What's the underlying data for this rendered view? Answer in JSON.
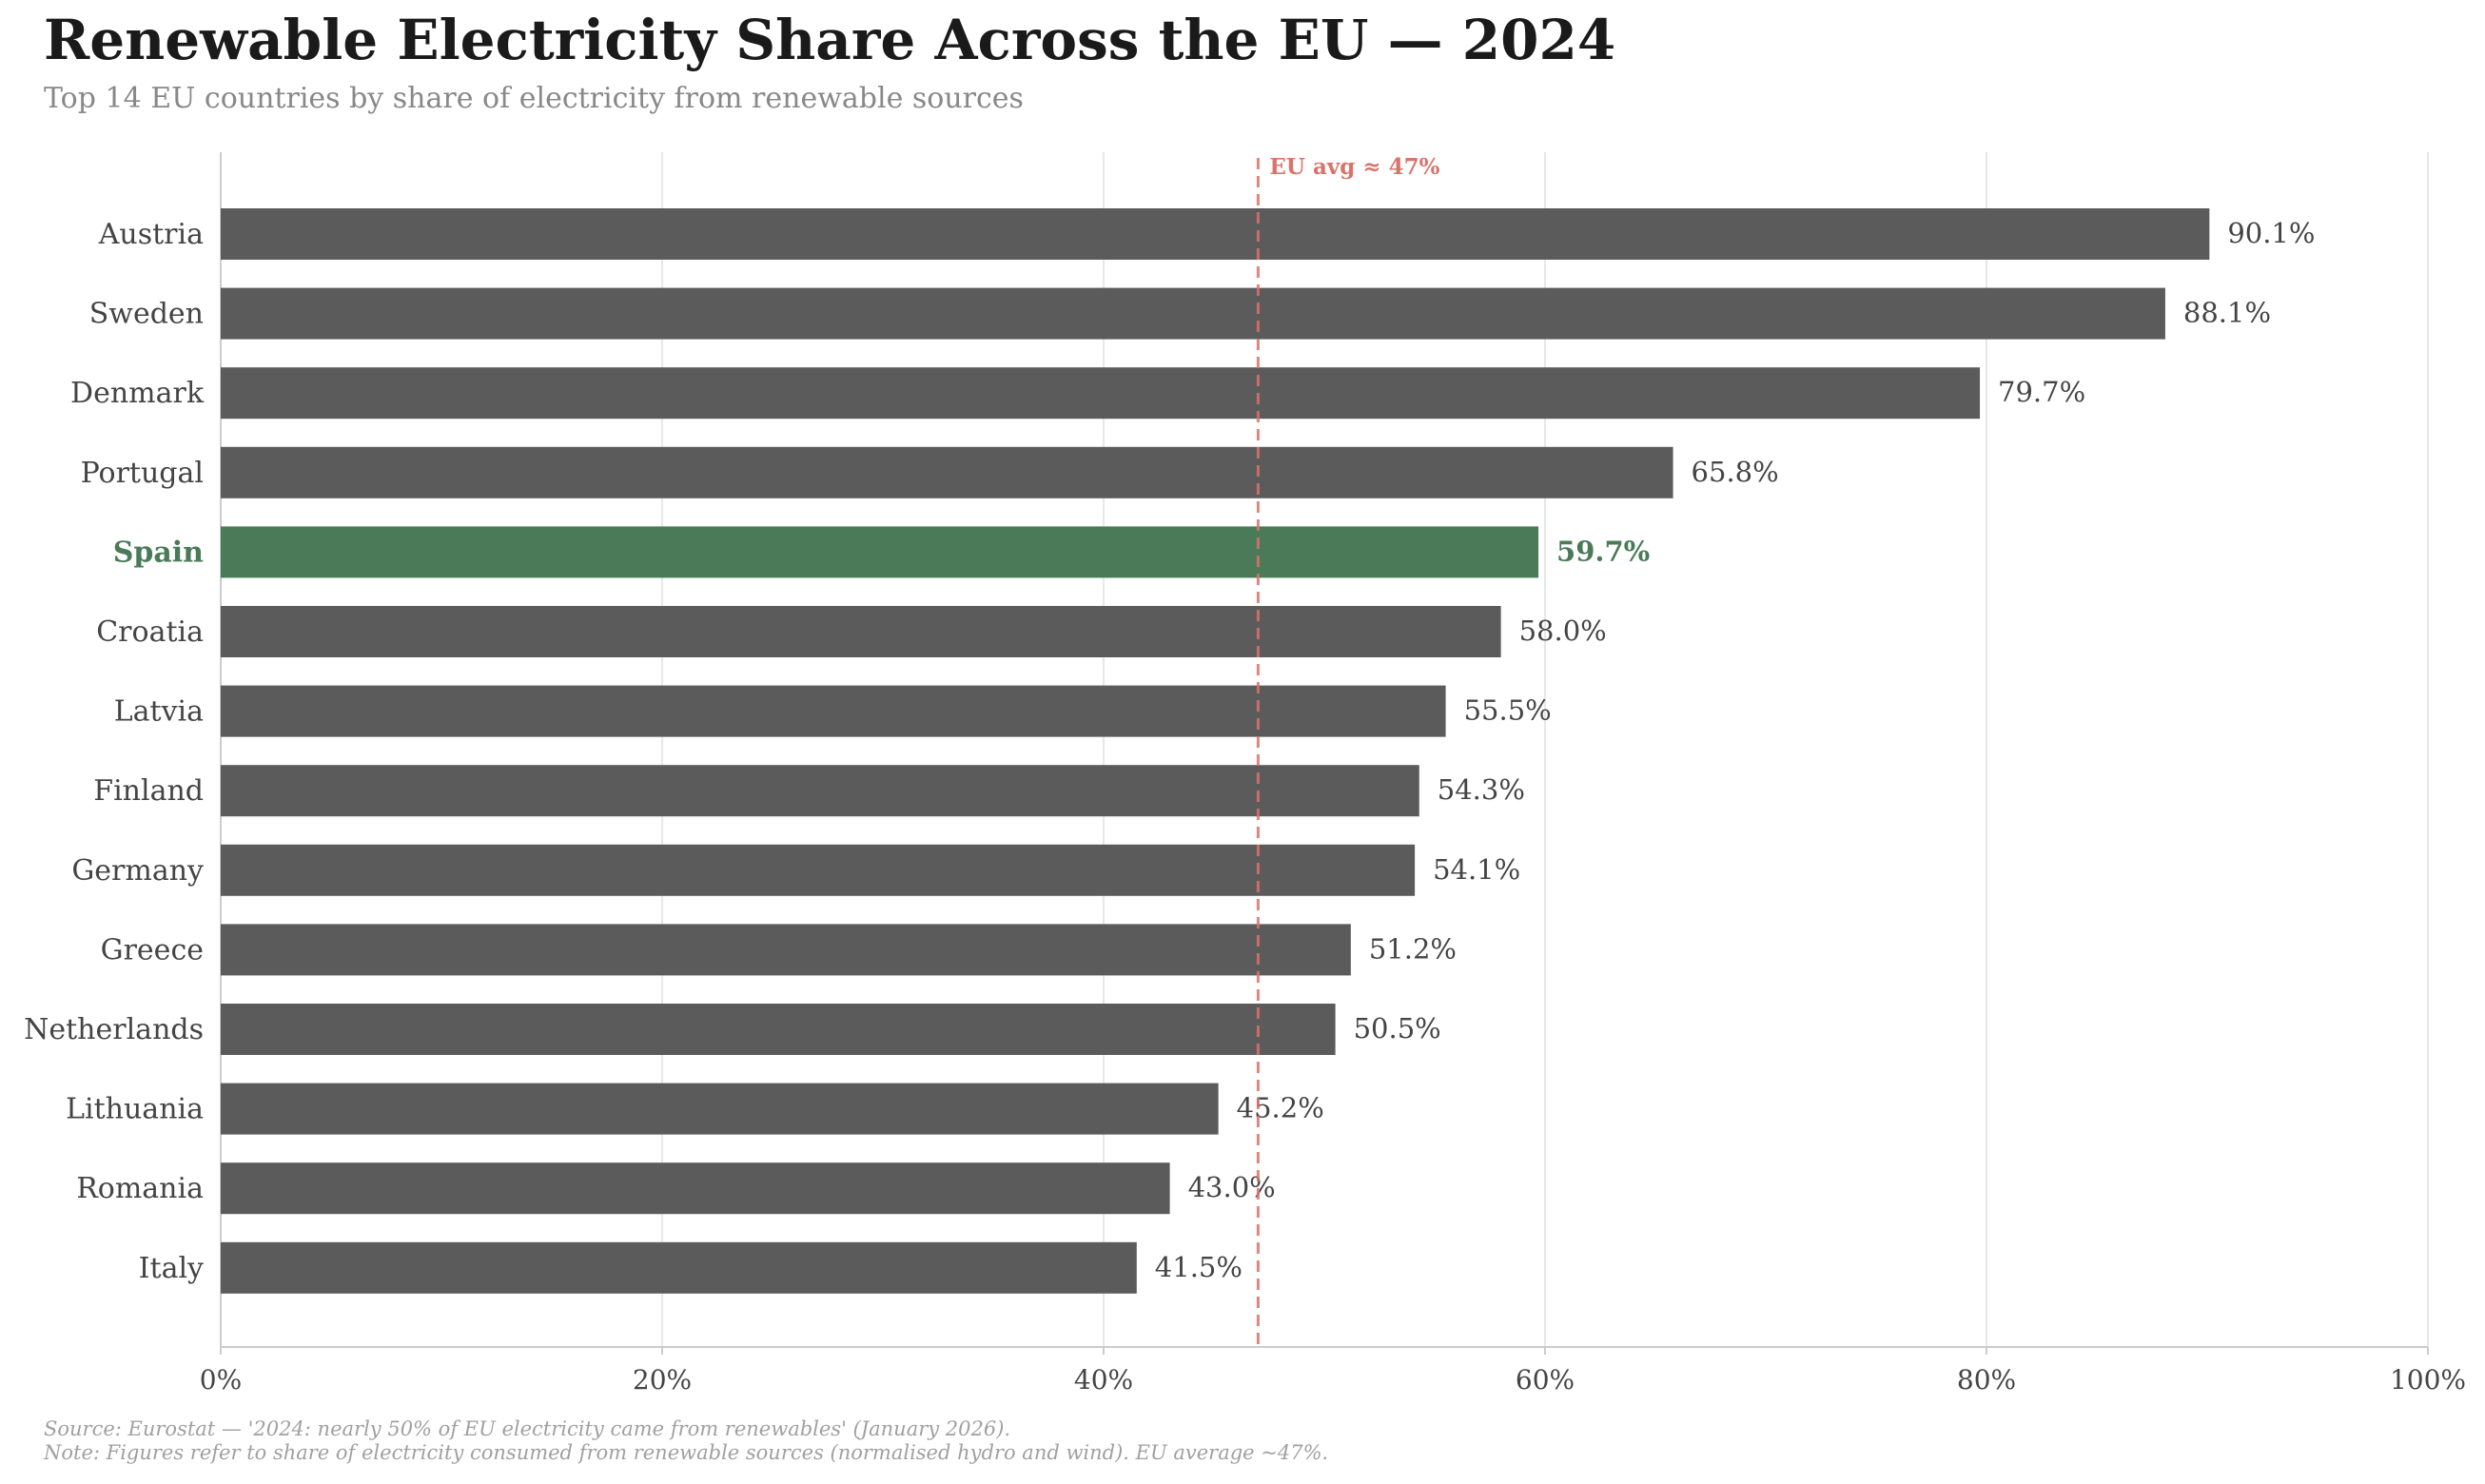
{
  "chart_data": {
    "type": "bar",
    "orientation": "horizontal",
    "title": "Renewable Electricity Share Across the EU — 2024",
    "subtitle": "Top 14 EU countries by share of electricity from renewable sources",
    "categories": [
      "Austria",
      "Sweden",
      "Denmark",
      "Portugal",
      "Spain",
      "Croatia",
      "Latvia",
      "Finland",
      "Germany",
      "Greece",
      "Netherlands",
      "Lithuania",
      "Romania",
      "Italy"
    ],
    "values": [
      90.1,
      88.1,
      79.7,
      65.8,
      59.7,
      58.0,
      55.5,
      54.3,
      54.1,
      51.2,
      50.5,
      45.2,
      43.0,
      41.5
    ],
    "value_labels": [
      "90.1%",
      "88.1%",
      "79.7%",
      "65.8%",
      "59.7%",
      "58.0%",
      "55.5%",
      "54.3%",
      "54.1%",
      "51.2%",
      "50.5%",
      "45.2%",
      "43.0%",
      "41.5%"
    ],
    "highlight": "Spain",
    "xlim": [
      0,
      100
    ],
    "xticks": [
      0,
      20,
      40,
      60,
      80,
      100
    ],
    "xtick_labels": [
      "0%",
      "20%",
      "40%",
      "60%",
      "80%",
      "100%"
    ],
    "xlabel": "",
    "ylabel": "",
    "grid": "vertical",
    "reference_line": {
      "value": 47,
      "label": "EU avg ≈ 47%"
    },
    "colors": {
      "bar": "#5b5b5b",
      "highlight": "#4a7a58",
      "reference": "#d9736c",
      "grid": "#e8e8e8",
      "axis": "#cccccc",
      "label": "#444444"
    }
  },
  "footnotes": {
    "source": "Source: Eurostat — '2024: nearly 50% of EU electricity came from renewables' (January 2026).",
    "note": "Note: Figures refer to share of electricity consumed from renewable sources (normalised hydro and wind). EU average ~47%."
  }
}
